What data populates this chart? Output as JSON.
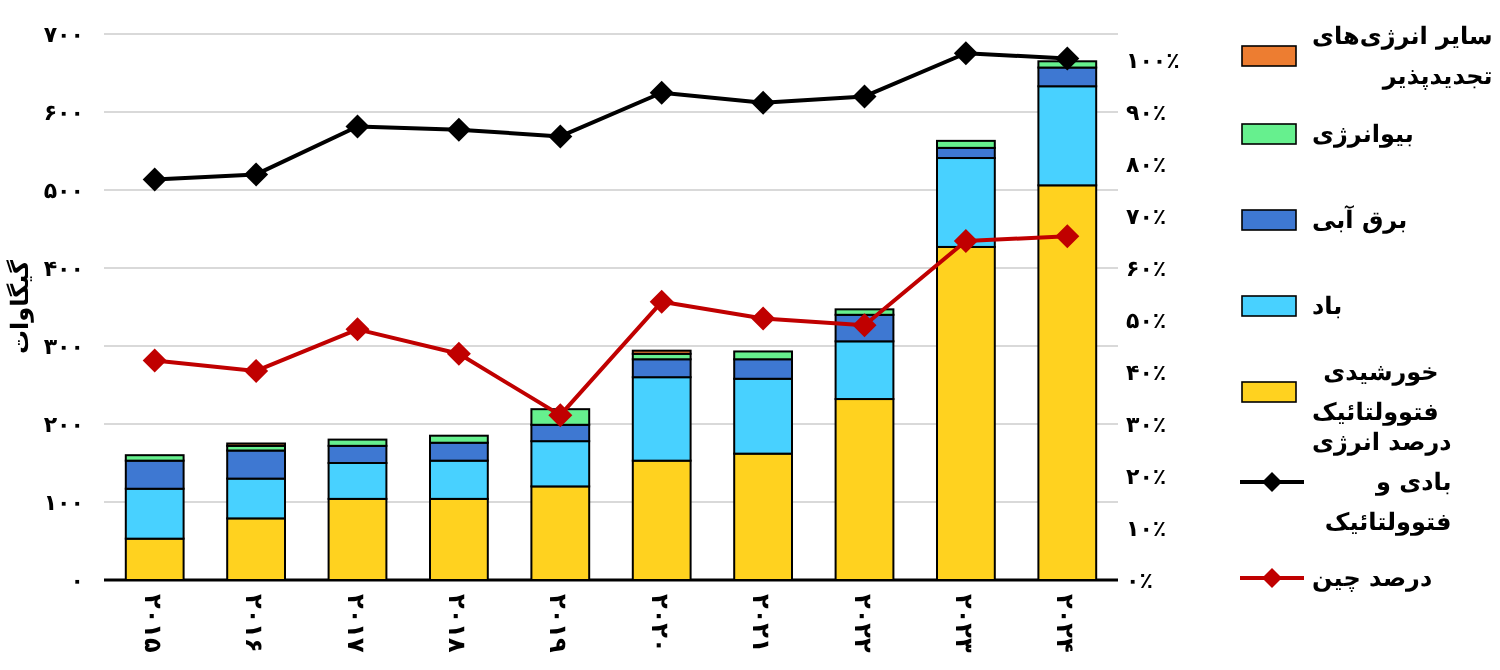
{
  "chart_data": {
    "type": "bar",
    "stacked": true,
    "ylabel": "گیگاوات",
    "categories": [
      "۲۰۱۵",
      "۲۰۱۶",
      "۲۰۱۷",
      "۲۰۱۸",
      "۲۰۱۹",
      "۲۰۲۰",
      "۲۰۲۱",
      "۲۰۲۲",
      "۲۰۲۳",
      "۲۰۲۴"
    ],
    "series": [
      {
        "name": "خورشیدی فتوولتائیک",
        "color": "#ffd21f",
        "values": [
          53,
          79,
          104,
          104,
          120,
          153,
          162,
          232,
          427,
          506
        ]
      },
      {
        "name": "باد",
        "color": "#48d1ff",
        "values": [
          64,
          51,
          46,
          49,
          58,
          107,
          96,
          74,
          114,
          127
        ]
      },
      {
        "name": "برق آبی",
        "color": "#3e78d2",
        "values": [
          36,
          36,
          22,
          23,
          21,
          23,
          25,
          34,
          13,
          24
        ]
      },
      {
        "name": "بیوانرژی",
        "color": "#66f08e",
        "values": [
          7,
          6,
          8,
          9,
          20,
          7,
          10,
          7,
          9,
          8
        ]
      },
      {
        "name": "سایر انرژی‌های تجدیدپذیر",
        "color": "#ed7d31",
        "values": [
          0,
          3,
          0,
          0,
          0,
          4,
          0,
          0,
          0,
          0
        ]
      },
      {
        "name": "درصد انرژی بادی و فتوولتائیک",
        "type": "line",
        "axis": "y2",
        "color": "#000000",
        "values": [
          77.0,
          78.0,
          87.2,
          86.6,
          85.3,
          93.7,
          91.8,
          93.0,
          101.3,
          100.3
        ]
      },
      {
        "name": "درصد چین",
        "type": "line",
        "axis": "y2",
        "color": "#c00000",
        "values": [
          42.2,
          40.2,
          48.2,
          43.5,
          31.7,
          53.5,
          50.3,
          49.0,
          65.2,
          66.1
        ]
      }
    ],
    "marker": "diamond",
    "ylim": [
      0,
      700
    ],
    "yticks": [
      {
        "value": 0,
        "label": "۰"
      },
      {
        "value": 100,
        "label": "۱۰۰"
      },
      {
        "value": 200,
        "label": "۲۰۰"
      },
      {
        "value": 300,
        "label": "۳۰۰"
      },
      {
        "value": 400,
        "label": "۴۰۰"
      },
      {
        "value": 500,
        "label": "۵۰۰"
      },
      {
        "value": 600,
        "label": "۶۰۰"
      },
      {
        "value": 700,
        "label": "۷۰۰"
      }
    ],
    "y2lim": [
      0,
      105
    ],
    "y2ticks": [
      {
        "value": 0,
        "label": "۰٪"
      },
      {
        "value": 10,
        "label": "۱۰٪"
      },
      {
        "value": 20,
        "label": "۲۰٪"
      },
      {
        "value": 30,
        "label": "۳۰٪"
      },
      {
        "value": 40,
        "label": "۴۰٪"
      },
      {
        "value": 50,
        "label": "۵۰٪"
      },
      {
        "value": 60,
        "label": "۶۰٪"
      },
      {
        "value": 70,
        "label": "۷۰٪"
      },
      {
        "value": 80,
        "label": "۸۰٪"
      },
      {
        "value": 90,
        "label": "۹۰٪"
      },
      {
        "value": 100,
        "label": "۱۰۰٪"
      }
    ],
    "grid": "y",
    "legend": "right"
  }
}
